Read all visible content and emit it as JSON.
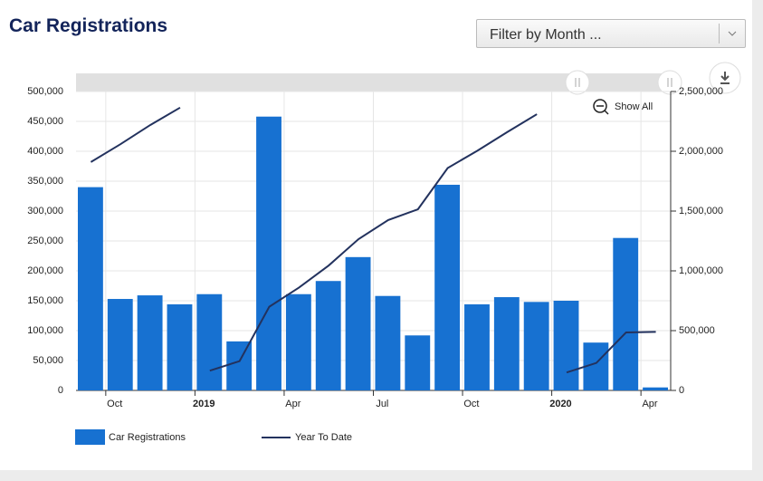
{
  "title": "Car Registrations",
  "filter": {
    "label": "Filter by Month ..."
  },
  "chart_data": {
    "type": "bar-line",
    "show_all": "Show All",
    "categories": [
      null,
      "Oct",
      null,
      null,
      "2019",
      null,
      null,
      "Apr",
      null,
      null,
      "Jul",
      null,
      null,
      "Oct",
      null,
      null,
      "2020",
      null,
      null,
      "Apr"
    ],
    "series": [
      {
        "name": "Car Registrations",
        "type": "bar",
        "color": "#1771d1",
        "axis": "y",
        "values": [
          340000,
          153000,
          159000,
          144000,
          161000,
          82000,
          458000,
          161000,
          183000,
          223000,
          158000,
          92000,
          344000,
          144000,
          156000,
          148000,
          150000,
          80000,
          255000,
          5000
        ]
      },
      {
        "name": "Year To Date",
        "type": "line",
        "color": "#23325e",
        "axis": "y2",
        "values": [
          1910000,
          2060000,
          2220000,
          2365000,
          165000,
          245000,
          700000,
          860000,
          1045000,
          1265000,
          1425000,
          1515000,
          1860000,
          2005000,
          2160000,
          2310000,
          150000,
          230000,
          485000,
          490000
        ]
      }
    ],
    "ylim": [
      0,
      500000
    ],
    "yticks": [
      0,
      {
        "value": 50000,
        "label": "50,000"
      },
      {
        "value": 100000,
        "label": "100,000"
      },
      {
        "value": 150000,
        "label": "150,000"
      },
      {
        "value": 200000,
        "label": "200,000"
      },
      {
        "value": 250000,
        "label": "250,000"
      },
      {
        "value": 300000,
        "label": "300,000"
      },
      {
        "value": 350000,
        "label": "350,000"
      },
      {
        "value": 400000,
        "label": "400,000"
      },
      {
        "value": 450000,
        "label": "450,000"
      },
      {
        "value": 500000,
        "label": "500,000"
      }
    ],
    "y2lim": [
      0,
      2500000
    ],
    "y2ticks": [
      0,
      {
        "value": 500000,
        "label": "500,000"
      },
      {
        "value": 1000000,
        "label": "1,000,000"
      },
      {
        "value": 1500000,
        "label": "1,500,000"
      },
      {
        "value": 2000000,
        "label": "2,000,000"
      },
      {
        "value": 2500000,
        "label": "2,500,000"
      }
    ],
    "grid": true
  }
}
